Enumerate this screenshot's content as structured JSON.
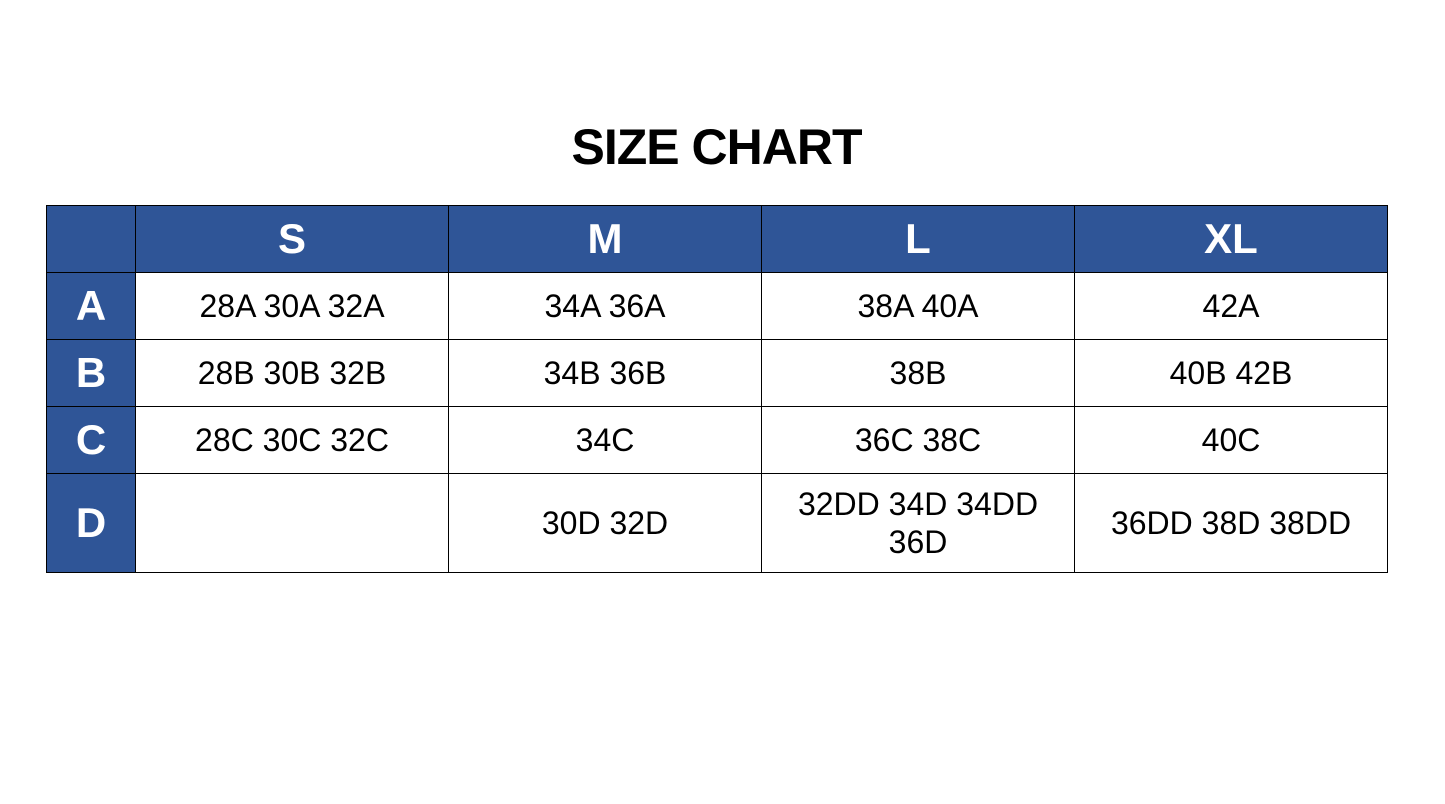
{
  "title": "SIZE CHART",
  "header_color": "#2F5597",
  "columns": [
    "S",
    "M",
    "L",
    "XL"
  ],
  "rows": [
    {
      "label": "A",
      "cells": [
        "28A 30A 32A",
        "34A 36A",
        "38A 40A",
        "42A"
      ]
    },
    {
      "label": "B",
      "cells": [
        "28B 30B 32B",
        "34B 36B",
        "38B",
        "40B 42B"
      ]
    },
    {
      "label": "C",
      "cells": [
        "28C 30C 32C",
        "34C",
        "36C 38C",
        "40C"
      ]
    },
    {
      "label": "D",
      "cells": [
        "",
        "30D 32D",
        "32DD 34D 34DD 36D",
        "36DD 38D 38DD"
      ]
    }
  ]
}
